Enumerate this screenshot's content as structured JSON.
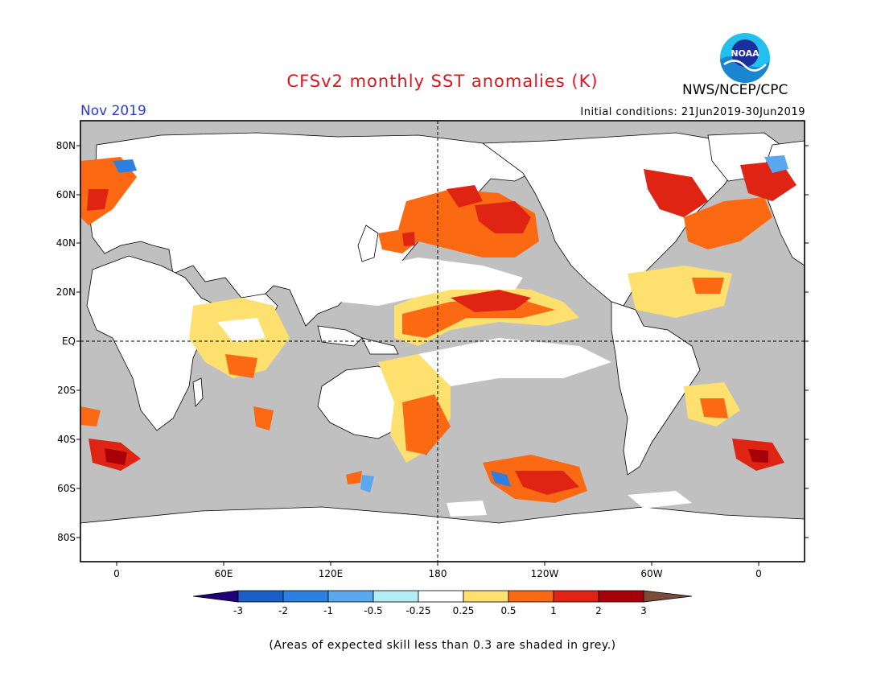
{
  "header": {
    "title": "CFSv2 monthly SST anomalies (K)",
    "title_color": "#e0141e",
    "month": "Nov 2019",
    "agency": "NWS/NCEP/CPC",
    "initial_conditions": "Initial conditions: 21Jun2019-30Jun2019",
    "logo_text": "NOAA"
  },
  "axes": {
    "lat_labels": [
      "80N",
      "60N",
      "40N",
      "20N",
      "EQ",
      "20S",
      "40S",
      "60S",
      "80S"
    ],
    "lon_labels": [
      "0",
      "60E",
      "120E",
      "180",
      "120W",
      "60W",
      "0"
    ]
  },
  "colorbar": {
    "labels": [
      "-3",
      "-2",
      "-1",
      "-0.5",
      "-0.25",
      "0.25",
      "0.5",
      "1",
      "2",
      "3"
    ],
    "colors": [
      "#20007a",
      "#1a5fc8",
      "#2d7fe0",
      "#5aa8f0",
      "#b4ecf4",
      "#ffffff",
      "#fde06e",
      "#fb6a12",
      "#e02414",
      "#a80008",
      "#7a4a3a"
    ]
  },
  "map": {
    "land_color": "#ffffff",
    "ocean_grey": "#c0c0c0"
  },
  "footnote": "(Areas of expected skill less than 0.3 are shaded in grey.)"
}
